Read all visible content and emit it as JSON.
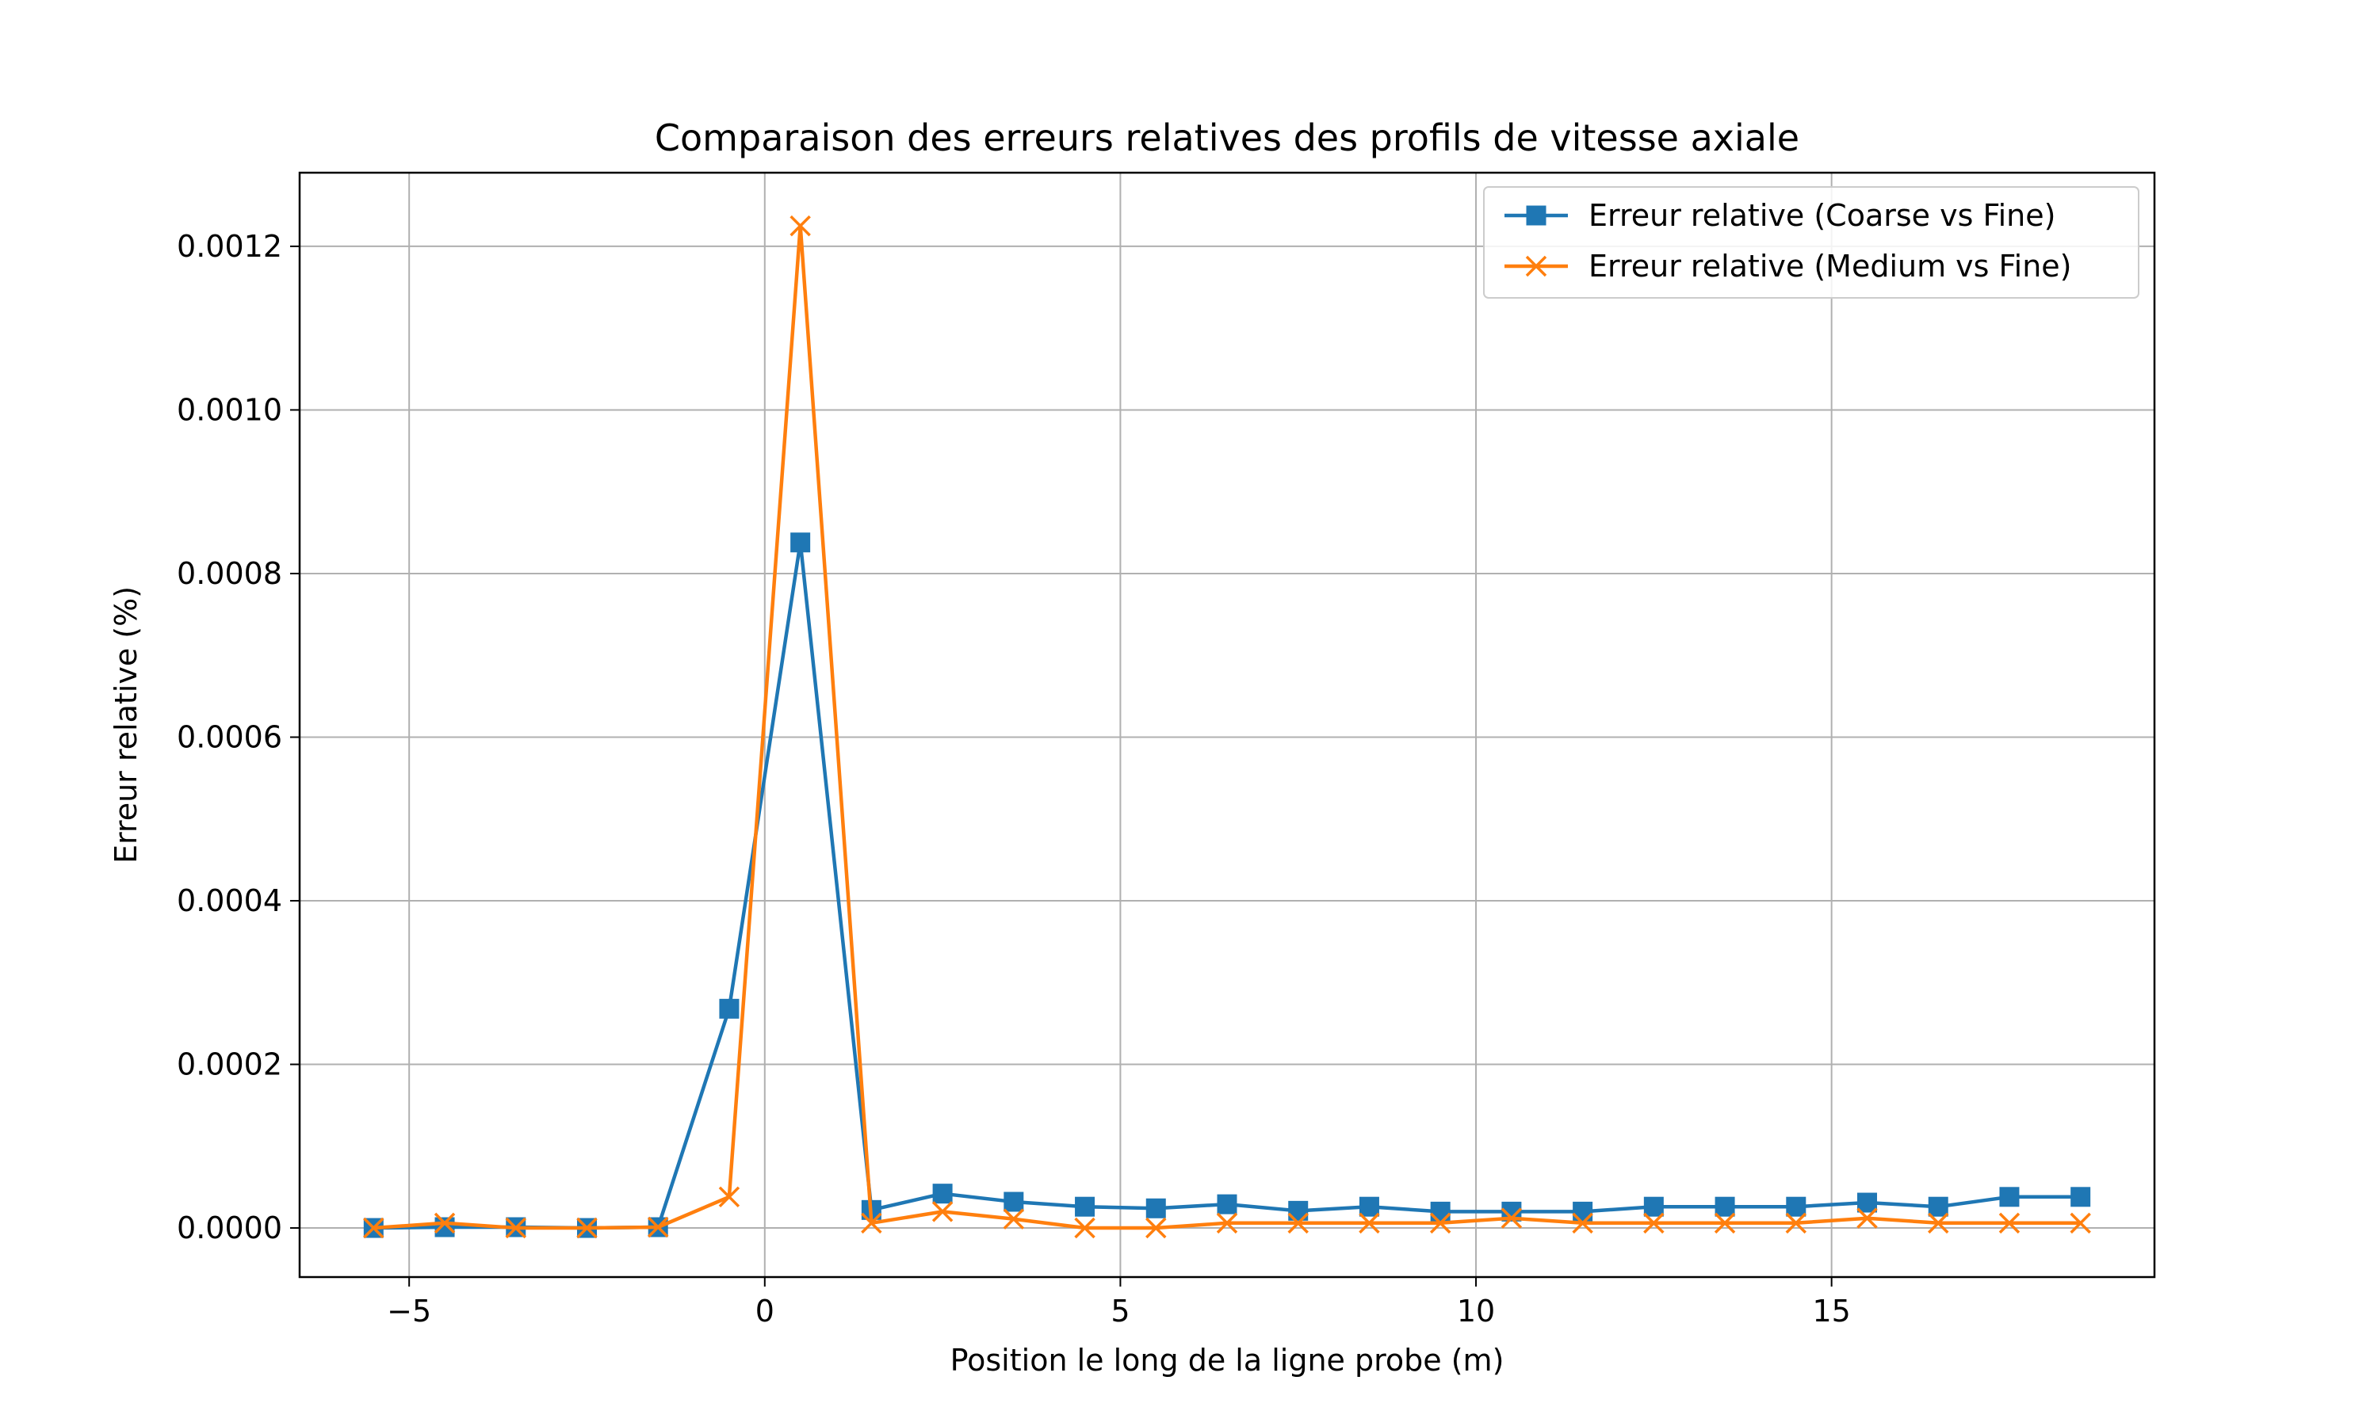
{
  "chart_data": {
    "type": "line",
    "title": "Comparaison des erreurs relatives des profils de vitesse axiale",
    "xlabel": "Position le long de la ligne probe (m)",
    "ylabel": "Erreur relative (%)",
    "xlim": [
      -6.54,
      19.54
    ],
    "ylim": [
      -6e-05,
      0.00129
    ],
    "xticks": [
      -5,
      0,
      5,
      10,
      15
    ],
    "xtick_labels": [
      "−5",
      "0",
      "5",
      "10",
      "15"
    ],
    "yticks": [
      0.0,
      0.0002,
      0.0004,
      0.0006,
      0.0008,
      0.001,
      0.0012
    ],
    "ytick_labels": [
      "0.0000",
      "0.0002",
      "0.0004",
      "0.0006",
      "0.0008",
      "0.0010",
      "0.0012"
    ],
    "grid": true,
    "legend_position": "top-right",
    "x": [
      -5.5,
      -4.5,
      -3.5,
      -2.5,
      -1.5,
      -0.5,
      0.5,
      1.5,
      2.5,
      3.5,
      4.5,
      5.5,
      6.5,
      7.5,
      8.5,
      9.5,
      10.5,
      11.5,
      12.5,
      13.5,
      14.5,
      15.5,
      16.5,
      17.5,
      18.5
    ],
    "series": [
      {
        "name": "Erreur relative (Coarse vs Fine)",
        "color": "#1f77b4",
        "marker": "square",
        "values": [
          0.0,
          1e-06,
          1e-06,
          0.0,
          1e-06,
          0.000268,
          0.000838,
          2.2e-05,
          4.2e-05,
          3.2e-05,
          2.6e-05,
          2.4e-05,
          2.9e-05,
          2.1e-05,
          2.6e-05,
          2e-05,
          2e-05,
          2e-05,
          2.6e-05,
          2.6e-05,
          2.6e-05,
          3.1e-05,
          2.6e-05,
          3.8e-05,
          3.8e-05
        ]
      },
      {
        "name": "Erreur relative (Medium vs Fine)",
        "color": "#ff7f0e",
        "marker": "x",
        "values": [
          0.0,
          6e-06,
          0.0,
          0.0,
          1e-06,
          3.8e-05,
          0.001225,
          6e-06,
          2e-05,
          1.1e-05,
          0.0,
          0.0,
          6e-06,
          6e-06,
          6e-06,
          6e-06,
          1.2e-05,
          6e-06,
          6e-06,
          6e-06,
          6e-06,
          1.2e-05,
          6e-06,
          6e-06,
          6e-06
        ]
      }
    ]
  }
}
